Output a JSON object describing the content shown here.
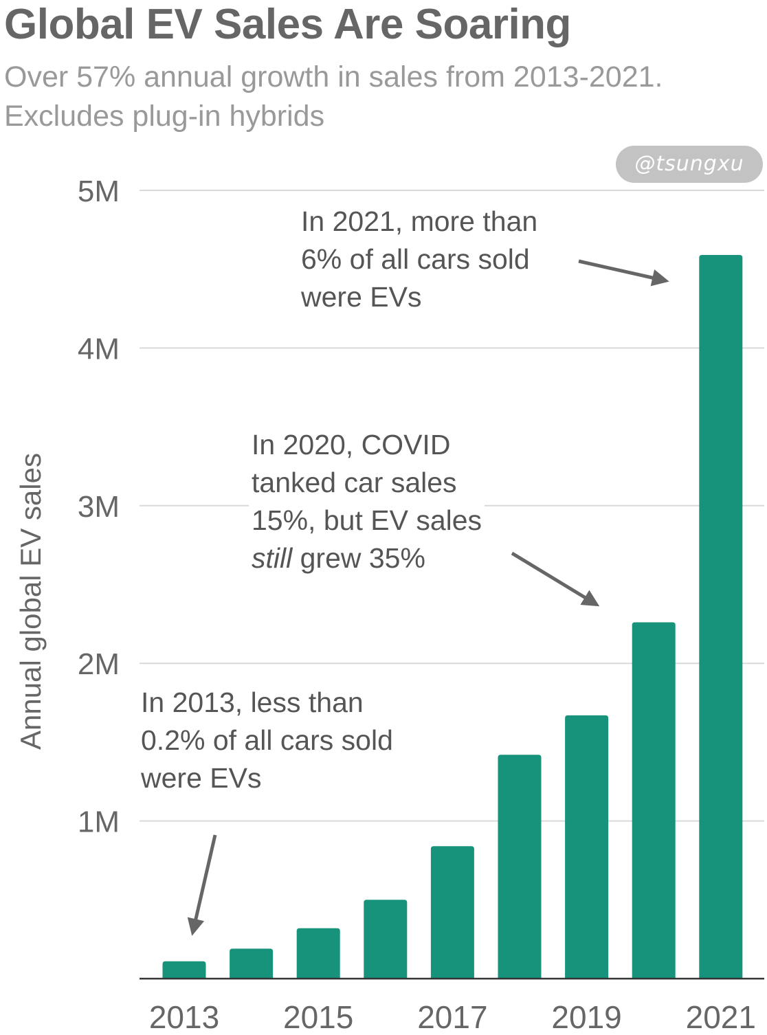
{
  "header": {
    "title": "Global EV Sales Are Soaring",
    "subtitle_line1": "Over 57% annual growth in sales from 2013-2021.",
    "subtitle_line2": "Excludes plug-in hybrids"
  },
  "watermark": {
    "text": "@tsungxu"
  },
  "colors": {
    "bar": "#16937a",
    "grid": "#d9d9d9",
    "axis_text": "#666666",
    "arrow": "#666666"
  },
  "annotations": {
    "a2021": {
      "line1": "In 2021, more than",
      "line2": "6% of all cars sold",
      "line3": "were EVs"
    },
    "a2020": {
      "line1": "In 2020, COVID",
      "line2": "tanked car sales",
      "line3": "15%, but EV sales",
      "line4_italic": "still",
      "line4_rest": " grew 35%"
    },
    "a2013": {
      "line1": "In 2013, less than",
      "line2": "0.2% of all cars sold",
      "line3": "were EVs"
    }
  },
  "chart_data": {
    "type": "bar",
    "title": "Global EV Sales Are Soaring",
    "subtitle": "Over 57% annual growth in sales from 2013-2021. Excludes plug-in hybrids",
    "xlabel": "",
    "ylabel": "Annual global EV sales",
    "categories": [
      "2013",
      "2014",
      "2015",
      "2016",
      "2017",
      "2018",
      "2019",
      "2020",
      "2021"
    ],
    "x_tick_labels": [
      "2013",
      "2015",
      "2017",
      "2019",
      "2021"
    ],
    "values": [
      110000,
      190000,
      320000,
      500000,
      840000,
      1420000,
      1670000,
      2260000,
      4590000
    ],
    "ylim": [
      0,
      5000000
    ],
    "y_ticks": [
      1000000,
      2000000,
      3000000,
      4000000,
      5000000
    ],
    "y_tick_labels": [
      "1M",
      "2M",
      "3M",
      "4M",
      "5M"
    ],
    "grid": true,
    "legend": "none"
  }
}
